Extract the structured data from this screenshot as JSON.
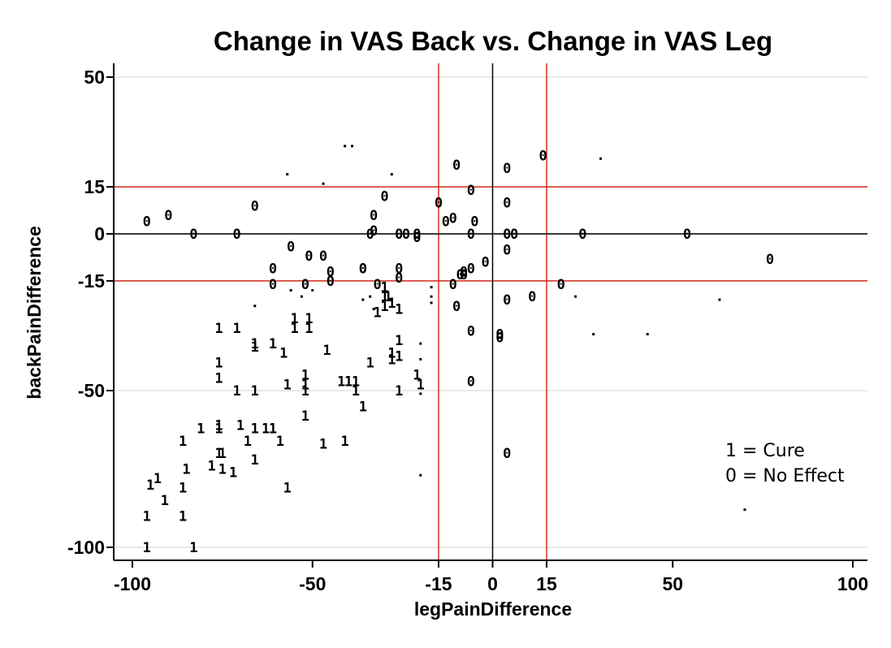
{
  "chart_data": {
    "type": "scatter",
    "title": "Change in VAS Back vs. Change in VAS Leg",
    "xlabel": "legPainDifference",
    "ylabel": "backPainDifference",
    "xlim": [
      -100,
      100
    ],
    "ylim": [
      -100,
      50
    ],
    "x_ticks": [
      -100,
      -50,
      -15,
      0,
      15,
      50,
      100
    ],
    "y_ticks": [
      -100,
      -50,
      -15,
      0,
      15,
      50
    ],
    "grid": "horizontal",
    "reference_lines": {
      "vertical_red": [
        -15,
        15
      ],
      "horizontal_red": [
        -15,
        15
      ],
      "vertical_black": [
        0
      ],
      "horizontal_black": [
        0
      ]
    },
    "colors": {
      "reference": "#d9301e",
      "zero_line": "#000000",
      "grid": "#e8e8e8",
      "marker": "#000000"
    },
    "legend": {
      "position": "bottom-right",
      "entries": [
        "1 = Cure",
        "0 = No Effect"
      ]
    },
    "series": [
      {
        "name": "1 = Cure",
        "marker": "1",
        "points": [
          [
            -96,
            -100
          ],
          [
            -83,
            -100
          ],
          [
            -96,
            -90
          ],
          [
            -95,
            -80
          ],
          [
            -93,
            -78
          ],
          [
            -91,
            -85
          ],
          [
            -86,
            -81
          ],
          [
            -85,
            -75
          ],
          [
            -86,
            -90
          ],
          [
            -86,
            -66
          ],
          [
            -81,
            -62
          ],
          [
            -76,
            -70
          ],
          [
            -78,
            -74
          ],
          [
            -75,
            -70
          ],
          [
            -75,
            -75
          ],
          [
            -72,
            -76
          ],
          [
            -76,
            -62
          ],
          [
            -76,
            -61
          ],
          [
            -70,
            -61
          ],
          [
            -68,
            -66
          ],
          [
            -66,
            -72
          ],
          [
            -66,
            -62
          ],
          [
            -63,
            -62
          ],
          [
            -61,
            -62
          ],
          [
            -59,
            -66
          ],
          [
            -76,
            -30
          ],
          [
            -71,
            -30
          ],
          [
            -76,
            -41
          ],
          [
            -76,
            -46
          ],
          [
            -66,
            -35
          ],
          [
            -66,
            -36
          ],
          [
            -61,
            -35
          ],
          [
            -58,
            -38
          ],
          [
            -55,
            -30
          ],
          [
            -55,
            -27
          ],
          [
            -51,
            -27
          ],
          [
            -51,
            -30
          ],
          [
            -46,
            -37
          ],
          [
            -42,
            -47
          ],
          [
            -40,
            -47
          ],
          [
            -38,
            -47
          ],
          [
            -38,
            -50
          ],
          [
            -36,
            -55
          ],
          [
            -34,
            -41
          ],
          [
            -32,
            -25
          ],
          [
            -30,
            -23
          ],
          [
            -30,
            -20
          ],
          [
            -28,
            -22
          ],
          [
            -26,
            -24
          ],
          [
            -28,
            -38
          ],
          [
            -28,
            -40
          ],
          [
            -30,
            -17
          ],
          [
            -29,
            -20
          ],
          [
            -26,
            -34
          ],
          [
            -26,
            -39
          ],
          [
            -52,
            -45
          ],
          [
            -52,
            -48
          ],
          [
            -52,
            -50
          ],
          [
            -57,
            -48
          ],
          [
            -52,
            -58
          ],
          [
            -47,
            -67
          ],
          [
            -41,
            -66
          ],
          [
            -57,
            -81
          ],
          [
            -71,
            -50
          ],
          [
            -66,
            -50
          ],
          [
            -26,
            -50
          ],
          [
            -20,
            -48
          ],
          [
            -21,
            -45
          ]
        ]
      },
      {
        "name": "0 = No Effect",
        "marker": "0",
        "points": [
          [
            -96,
            4
          ],
          [
            -90,
            6
          ],
          [
            -83,
            0
          ],
          [
            -71,
            0
          ],
          [
            -66,
            9
          ],
          [
            -56,
            -4
          ],
          [
            -51,
            -7
          ],
          [
            -47,
            -7
          ],
          [
            -45,
            -12
          ],
          [
            -45,
            -15
          ],
          [
            -52,
            -16
          ],
          [
            -61,
            -11
          ],
          [
            -61,
            -16
          ],
          [
            -36,
            -11
          ],
          [
            -34,
            0
          ],
          [
            -33,
            6
          ],
          [
            -33,
            1
          ],
          [
            -30,
            12
          ],
          [
            -36,
            -11
          ],
          [
            -32,
            -16
          ],
          [
            -26,
            -11
          ],
          [
            -26,
            -14
          ],
          [
            -26,
            0
          ],
          [
            -24,
            0
          ],
          [
            -21,
            0
          ],
          [
            -21,
            -1
          ],
          [
            -15,
            10
          ],
          [
            -13,
            4
          ],
          [
            -11,
            5
          ],
          [
            -10,
            22
          ],
          [
            -6,
            14
          ],
          [
            -5,
            4
          ],
          [
            -6,
            0
          ],
          [
            -6,
            -11
          ],
          [
            -8,
            -12
          ],
          [
            -8,
            -13
          ],
          [
            -9,
            -13
          ],
          [
            -11,
            -16
          ],
          [
            -2,
            -9
          ],
          [
            -10,
            -23
          ],
          [
            -6,
            -31
          ],
          [
            -6,
            -47
          ],
          [
            2,
            -33
          ],
          [
            2,
            -32
          ],
          [
            4,
            21
          ],
          [
            4,
            10
          ],
          [
            4,
            0
          ],
          [
            4,
            -5
          ],
          [
            4,
            -21
          ],
          [
            6,
            0
          ],
          [
            11,
            -20
          ],
          [
            14,
            25
          ],
          [
            19,
            -16
          ],
          [
            25,
            0
          ],
          [
            54,
            0
          ],
          [
            77,
            -8
          ],
          [
            4,
            -70
          ]
        ]
      },
      {
        "name": "",
        "marker": "·",
        "points": [
          [
            -41,
            28
          ],
          [
            -39,
            28
          ],
          [
            -57,
            19
          ],
          [
            -47,
            16
          ],
          [
            -28,
            19
          ],
          [
            30,
            24
          ],
          [
            -66,
            -23
          ],
          [
            -53,
            -20
          ],
          [
            -36,
            -21
          ],
          [
            -34,
            -20
          ],
          [
            -20,
            -35
          ],
          [
            -20,
            -40
          ],
          [
            -20,
            -51
          ],
          [
            -20,
            -77
          ],
          [
            -17,
            -20
          ],
          [
            -17,
            -17
          ],
          [
            23,
            -20
          ],
          [
            -17,
            -22
          ],
          [
            -33,
            -24
          ],
          [
            28,
            -32
          ],
          [
            43,
            -32
          ],
          [
            63,
            -21
          ],
          [
            70,
            -88
          ],
          [
            -56,
            -18
          ],
          [
            -50,
            -18
          ]
        ]
      }
    ]
  }
}
